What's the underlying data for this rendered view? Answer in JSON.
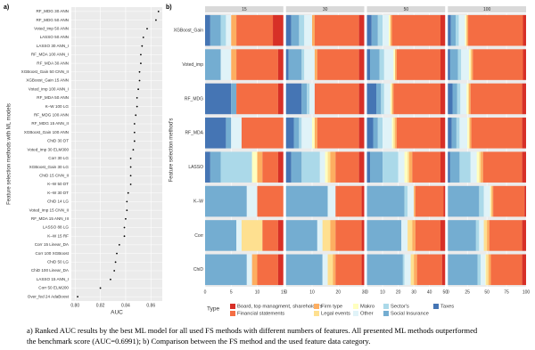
{
  "panel_labels": [
    "a)",
    "b)"
  ],
  "chart_data": [
    {
      "type": "dot",
      "y_label": "Feature selection methods with ML models",
      "x_label": "AUC",
      "categories": [
        "RF_MDG 30 ANN",
        "RF_MDG 50 ANN",
        "Voted_imp 50 ANN",
        "LASSO 50 ANN",
        "LASSO 30 ANN_I",
        "RF_MDA 100 ANN_I",
        "RF_MDA 30 ANN",
        "XGBoost_Gain 50 CNN_II",
        "XGBoost_Gain 15 ANN",
        "Voted_imp 100 ANN_I",
        "RF_MDA 50 ANN",
        "K–W 100 LG",
        "RF_MDG 100 ANN",
        "RF_MDG 15 ANN_II",
        "XGBoost_Gain 100 ANN",
        "ChiD 30 DT",
        "Voted_imp 30 ELM300",
        "Corr 30 LG",
        "XGBoost_Gain 30 LG",
        "ChiD 15 CNN_II",
        "K–W 50 DT",
        "K–W 30 DT",
        "ChiD 14 LG",
        "Voted_imp 15 CNN_II",
        "RF_MDA 15 ANN_III",
        "LASSO 88 LG",
        "K–W 15 RF",
        "Corr 15 Linear_DA",
        "Corr 100 XGBoost",
        "ChiD 50 LG",
        "ChiD 100 Linear_DA",
        "LASSO 15 ANN_I",
        "Corr 50 ELM200",
        "Over_fed 24 AdaBoost"
      ],
      "values": [
        0.866,
        0.864,
        0.857,
        0.854,
        0.853,
        0.852,
        0.852,
        0.851,
        0.851,
        0.85,
        0.849,
        0.849,
        0.848,
        0.847,
        0.847,
        0.847,
        0.846,
        0.844,
        0.844,
        0.844,
        0.844,
        0.842,
        0.841,
        0.841,
        0.84,
        0.839,
        0.839,
        0.835,
        0.833,
        0.832,
        0.831,
        0.828,
        0.82,
        0.802
      ],
      "color": "#000000",
      "xlim": [
        0.797,
        0.869
      ],
      "xticks": [
        {
          "value": 0.8,
          "label": "0.80"
        },
        {
          "value": 0.82,
          "label": "0.82"
        },
        {
          "value": 0.84,
          "label": "0.84"
        },
        {
          "value": 0.86,
          "label": "0.86"
        }
      ],
      "grid": true
    },
    {
      "type": "bar",
      "orientation": "horizontal",
      "stacked": true,
      "y_label": "Feature selection method's",
      "legend_title": "Type",
      "categories": [
        "XGBoost_Gain",
        "Voted_imp",
        "RF_MDG",
        "RF_MDA",
        "LASSO",
        "K–W",
        "Corr",
        "ChiD"
      ],
      "series": [
        {
          "name": "Board, top managment, shareholders",
          "color": "#d73027"
        },
        {
          "name": "Financial statements",
          "color": "#f46d43"
        },
        {
          "name": "Firm type",
          "color": "#fdae61"
        },
        {
          "name": "Legal events",
          "color": "#fee090"
        },
        {
          "name": "Makro",
          "color": "#ffffbf"
        },
        {
          "name": "Other",
          "color": "#e0f3f8"
        },
        {
          "name": "Sector's",
          "color": "#abd9e9"
        },
        {
          "name": "Social Insurance",
          "color": "#74add1"
        },
        {
          "name": "Taxes",
          "color": "#4575b4"
        }
      ],
      "facets": [
        {
          "title": "15",
          "xlim": [
            0,
            15
          ],
          "xticks": [
            0,
            5,
            10,
            15
          ],
          "values": [
            [
              2,
              1,
              1,
              0,
              1,
              0,
              1,
              1
            ],
            [
              7,
              8,
              8,
              8,
              3,
              5,
              3,
              4
            ],
            [
              1,
              1,
              0,
              0,
              1,
              0,
              0,
              1
            ],
            [
              0,
              0,
              0,
              0,
              0,
              0,
              4,
              0
            ],
            [
              0,
              0,
              0,
              0,
              1,
              0,
              0,
              0
            ],
            [
              1,
              2,
              0,
              2,
              0,
              2,
              1,
              1
            ],
            [
              1,
              0,
              0,
              0,
              6,
              0,
              0,
              0
            ],
            [
              2,
              3,
              1,
              1,
              2,
              8,
              6,
              8
            ],
            [
              1,
              0,
              5,
              4,
              1,
              0,
              0,
              0
            ]
          ]
        },
        {
          "title": "30",
          "xlim": [
            0,
            30
          ],
          "xticks": [
            0,
            10,
            20,
            30
          ],
          "values": [
            [
              2,
              2,
              2,
              2,
              2,
              1,
              1,
              1
            ],
            [
              17,
              16,
              17,
              16,
              9,
              10,
              10,
              10
            ],
            [
              1,
              1,
              0,
              1,
              2,
              0,
              2,
              1
            ],
            [
              0,
              0,
              0,
              0,
              1,
              0,
              3,
              2
            ],
            [
              0,
              0,
              0,
              1,
              1,
              0,
              0,
              0
            ],
            [
              3,
              4,
              2,
              4,
              2,
              3,
              2,
              2
            ],
            [
              2,
              1,
              1,
              1,
              7,
              0,
              0,
              0
            ],
            [
              3,
              5,
              2,
              2,
              4,
              16,
              12,
              14
            ],
            [
              2,
              1,
              6,
              3,
              2,
              0,
              0,
              0
            ]
          ]
        },
        {
          "title": "50",
          "xlim": [
            0,
            50
          ],
          "xticks": [
            0,
            10,
            20,
            30,
            40,
            50
          ],
          "values": [
            [
              3,
              3,
              3,
              3,
              3,
              1,
              3,
              2
            ],
            [
              31,
              28,
              30,
              28,
              18,
              18,
              16,
              16
            ],
            [
              1,
              1,
              1,
              1,
              2,
              1,
              2,
              2
            ],
            [
              0,
              0,
              0,
              1,
              1,
              0,
              3,
              2
            ],
            [
              1,
              1,
              1,
              1,
              2,
              0,
              0,
              0
            ],
            [
              4,
              6,
              4,
              6,
              4,
              4,
              4,
              4
            ],
            [
              3,
              3,
              2,
              3,
              10,
              2,
              0,
              1
            ],
            [
              4,
              6,
              3,
              3,
              8,
              24,
              22,
              23
            ],
            [
              3,
              2,
              6,
              4,
              2,
              0,
              0,
              0
            ]
          ]
        },
        {
          "title": "100",
          "xlim": [
            0,
            100
          ],
          "xticks": [
            0,
            25,
            50,
            75,
            100
          ],
          "values": [
            [
              4,
              4,
              5,
              5,
              5,
              2,
              5,
              5
            ],
            [
              70,
              64,
              66,
              65,
              50,
              40,
              42,
              40
            ],
            [
              2,
              2,
              2,
              2,
              3,
              2,
              3,
              3
            ],
            [
              0,
              1,
              1,
              1,
              2,
              1,
              4,
              3
            ],
            [
              2,
              2,
              2,
              2,
              3,
              1,
              0,
              1
            ],
            [
              8,
              10,
              8,
              10,
              8,
              8,
              6,
              6
            ],
            [
              4,
              4,
              4,
              4,
              14,
              6,
              4,
              4
            ],
            [
              6,
              10,
              6,
              6,
              12,
              40,
              36,
              38
            ],
            [
              4,
              3,
              6,
              5,
              3,
              0,
              0,
              0
            ]
          ]
        }
      ],
      "grid": true
    }
  ],
  "caption": [
    "a) Ranked AUC results by the best ML model for all used FS methods with different numbers of features. All presented ML methods outperformed",
    "the benchmark score (AUC=0.6991); b) Comparison between the FS method and the used feature data category."
  ]
}
